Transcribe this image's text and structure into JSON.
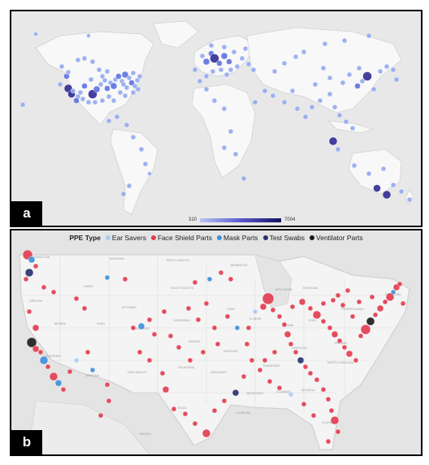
{
  "panel_a": {
    "tag": "a",
    "scale": {
      "min": "310",
      "max": "7004",
      "color_low": "#b9c6f2",
      "color_high": "#14105e"
    }
  },
  "panel_b": {
    "tag": "b",
    "legend_title": "PPE Type",
    "types": [
      {
        "label": "Ear Savers",
        "color": "#a8cdf0"
      },
      {
        "label": "Face Shield Parts",
        "color": "#e23a4e"
      },
      {
        "label": "Mask Parts",
        "color": "#3c8fd8"
      },
      {
        "label": "Test Swabs",
        "color": "#27306e"
      },
      {
        "label": "Ventilator Parts",
        "color": "#1a1a1a"
      }
    ],
    "map_labels": [
      "WASHINGTON",
      "MONTANA",
      "NORTH DAKOTA",
      "MINNESOTA",
      "OREGON",
      "IDAHO",
      "SOUTH DAKOTA",
      "WYOMING",
      "WISCONSIN",
      "MICHIGAN",
      "NEBRASKA",
      "IOWA",
      "NEVADA",
      "UTAH",
      "COLORADO",
      "KANSAS",
      "ILLINOIS",
      "INDIANA",
      "OHIO",
      "PENNSYLVANIA",
      "NEW YORK",
      "CALIFORNIA",
      "MISSOURI",
      "KENTUCKY",
      "VIRGINIA",
      "ARIZONA",
      "NEW MEXICO",
      "OKLAHOMA",
      "ARKANSAS",
      "TENNESSEE",
      "NORTH CAROLINA",
      "TEXAS",
      "MISSISSIPPI",
      "ALABAMA",
      "GEORGIA",
      "LOUISIANA",
      "FLORIDA",
      "MEXICO"
    ]
  }
}
